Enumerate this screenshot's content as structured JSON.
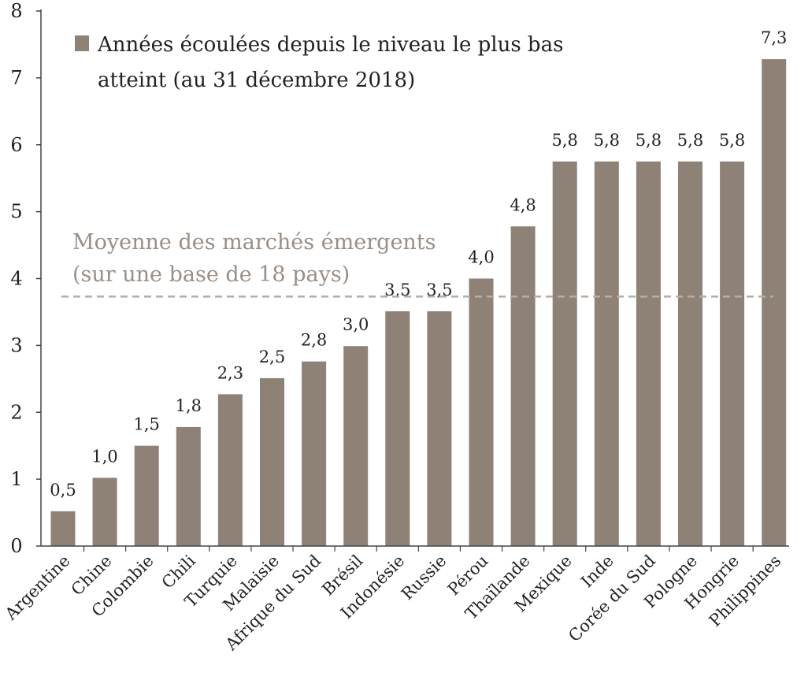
{
  "chart_data": {
    "type": "bar",
    "categories": [
      "Argentine",
      "Chine",
      "Colombie",
      "Chili",
      "Turquie",
      "Malaisie",
      "Afrique du Sud",
      "Brésil",
      "Indonésie",
      "Russie",
      "Pérou",
      "Thaïlande",
      "Mexique",
      "Inde",
      "Corée du Sud",
      "Pologne",
      "Hongrie",
      "Philippines"
    ],
    "values": [
      0.52,
      1.02,
      1.5,
      1.78,
      2.27,
      2.51,
      2.76,
      2.99,
      3.51,
      3.51,
      4.0,
      4.78,
      5.75,
      5.75,
      5.75,
      5.75,
      5.75,
      7.28
    ],
    "value_labels": [
      "0,5",
      "1,0",
      "1,5",
      "1,8",
      "2,3",
      "2,5",
      "2,8",
      "3,0",
      "3,5",
      "3,5",
      "4,0",
      "4,8",
      "5,8",
      "5,8",
      "5,8",
      "5,8",
      "5,8",
      "7,3"
    ],
    "ylim": [
      0,
      8
    ],
    "yticks": [
      "0",
      "1",
      "2",
      "3",
      "4",
      "5",
      "6",
      "7",
      "8"
    ],
    "legend": {
      "line1": "Années écoulées depuis le niveau le plus bas",
      "line2": "atteint (au 31 décembre 2018)",
      "placement": "top-left"
    },
    "reference_line": {
      "value": 3.73,
      "label_line1": "Moyenne des marchés émergents",
      "label_line2": "(sur une base de 18 pays)",
      "style": "dashed"
    },
    "grid": false
  },
  "colors": {
    "bar": "#8e8176",
    "axis": "#444444",
    "avg_line": "#b8aca3",
    "avg_text": "#9a8e85"
  }
}
